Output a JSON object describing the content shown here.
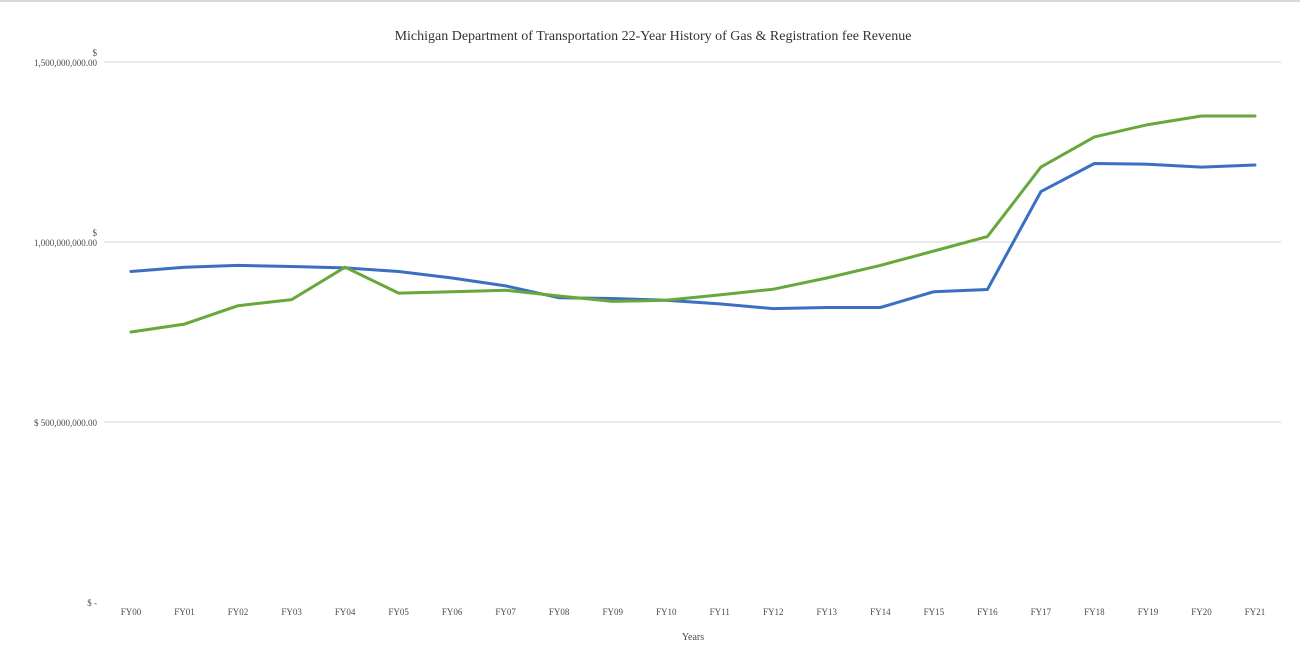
{
  "chart_data": {
    "type": "line",
    "title": "Michigan Department of Transportation 22-Year History of Gas & Registration fee Revenue",
    "xlabel": "Years",
    "ylabel": "",
    "categories": [
      "FY00",
      "FY01",
      "FY02",
      "FY03",
      "FY04",
      "FY05",
      "FY06",
      "FY07",
      "FY08",
      "FY09",
      "FY10",
      "FY11",
      "FY12",
      "FY13",
      "FY14",
      "FY15",
      "FY16",
      "FY17",
      "FY18",
      "FY19",
      "FY20",
      "FY21"
    ],
    "ylim": [
      0,
      1500000000
    ],
    "y_ticks": [
      {
        "value": 1500000000,
        "label_top": "$",
        "label_main": "1,500,000,000.00"
      },
      {
        "value": 1000000000,
        "label_top": "$",
        "label_main": "1,000,000,000.00"
      },
      {
        "value": 500000000,
        "label_top": "",
        "label_main": "$ 500,000,000.00"
      },
      {
        "value": 0,
        "label_top": "",
        "label_main": "$ -"
      }
    ],
    "grid": true,
    "legend": "none",
    "series": [
      {
        "color": "#3b6fc4",
        "values": [
          918000000,
          930000000,
          935000000,
          932000000,
          928000000,
          918000000,
          900000000,
          878000000,
          845000000,
          843000000,
          838000000,
          828000000,
          815000000,
          818000000,
          818000000,
          862000000,
          868000000,
          1140000000,
          1218000000,
          1216000000,
          1208000000,
          1214000000
        ]
      },
      {
        "color": "#67a83a",
        "values": [
          750000000,
          772000000,
          823000000,
          840000000,
          930000000,
          858000000,
          862000000,
          866000000,
          850000000,
          835000000,
          838000000,
          853000000,
          869000000,
          900000000,
          935000000,
          975000000,
          1015000000,
          1208000000,
          1292000000,
          1326000000,
          1350000000,
          1350000000
        ]
      }
    ]
  }
}
